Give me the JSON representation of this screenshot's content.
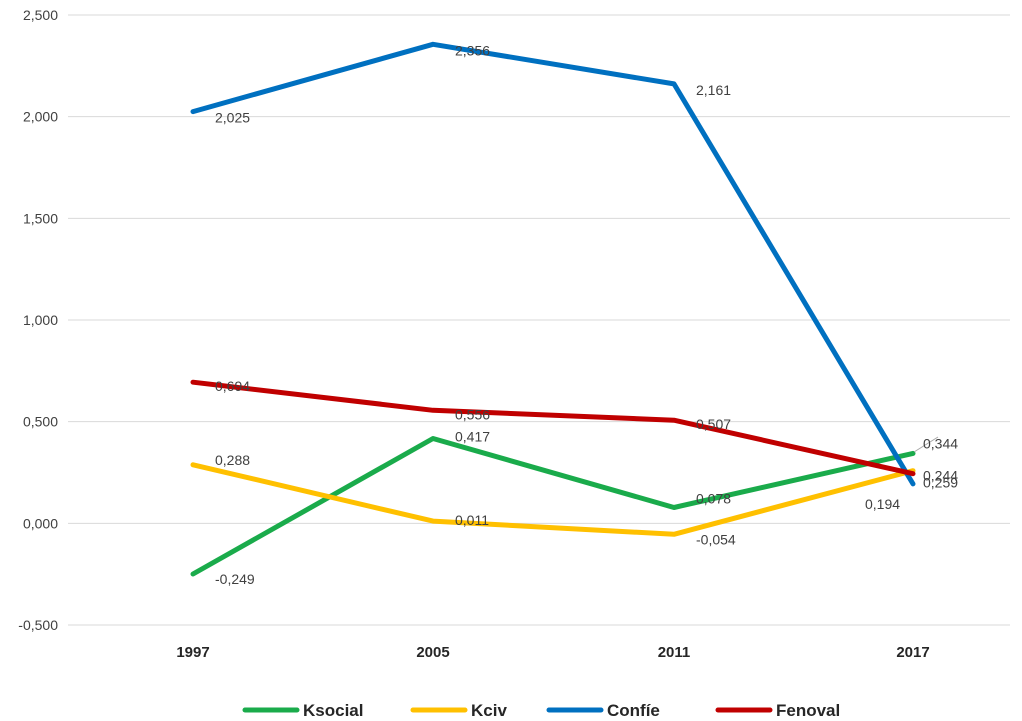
{
  "chart_data": {
    "type": "line",
    "categories": [
      "1997",
      "2005",
      "2011",
      "2017"
    ],
    "ylim": [
      -0.5,
      2.5
    ],
    "yticks": [
      -0.5,
      0,
      0.5,
      1,
      1.5,
      2,
      2.5
    ],
    "ytick_labels": [
      "-0,500",
      "0,000",
      "0,500",
      "1,000",
      "1,500",
      "2,000",
      "2,500"
    ],
    "grid": true,
    "legend": "bottom",
    "series": [
      {
        "name": "Ksocial",
        "color": "#1aab4b",
        "values": [
          -0.249,
          0.417,
          0.078,
          0.344
        ],
        "labels": [
          "-0,249",
          "0,417",
          "0,078",
          "0,344"
        ]
      },
      {
        "name": "Kciv",
        "color": "#ffc000",
        "values": [
          0.288,
          0.011,
          -0.054,
          0.259
        ],
        "labels": [
          "0,288",
          "0,011",
          "-0,054",
          "0,259"
        ]
      },
      {
        "name": "Confíe",
        "color": "#0070c0",
        "values": [
          2.025,
          2.356,
          2.161,
          0.194
        ],
        "labels": [
          "2,025",
          "2,356",
          "2,161",
          "0,194"
        ]
      },
      {
        "name": "Fenoval",
        "color": "#c00000",
        "values": [
          0.694,
          0.556,
          0.507,
          0.244
        ],
        "labels": [
          "0,694",
          "0,556",
          "0,507",
          "0,244"
        ]
      }
    ]
  }
}
